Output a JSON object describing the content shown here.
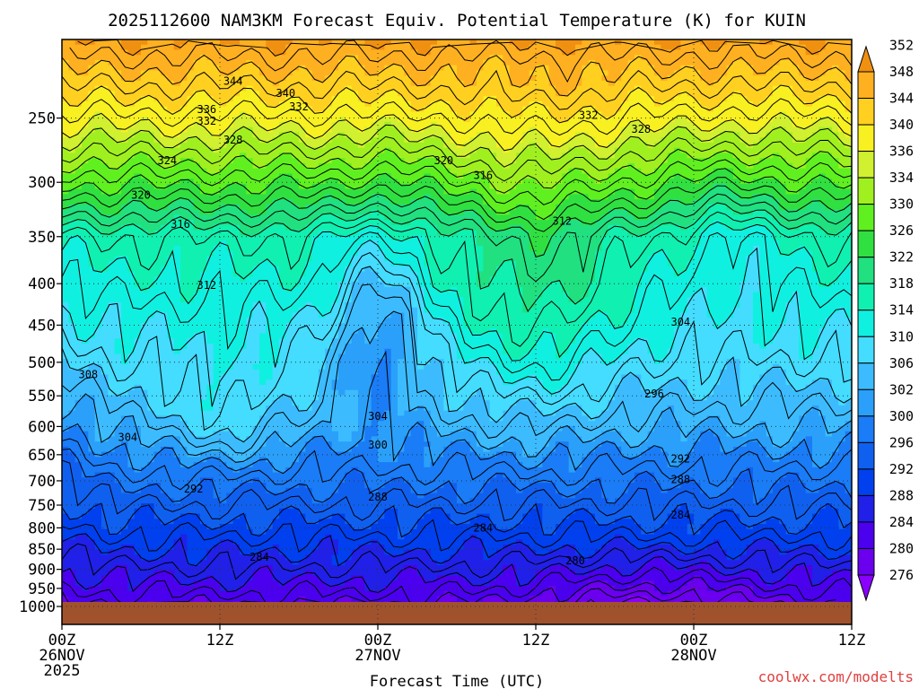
{
  "chart_data": {
    "type": "heatmap",
    "title": "2025112600 NAM3KM Forecast Equiv. Potential Temperature (K) for KUIN",
    "xlabel": "Forecast Time (UTC)",
    "ylabel": "",
    "x_ticks": [
      {
        "lines": [
          "00Z",
          "26NOV",
          "2025"
        ]
      },
      {
        "lines": [
          "12Z"
        ]
      },
      {
        "lines": [
          "00Z",
          "27NOV"
        ]
      },
      {
        "lines": [
          "12Z"
        ]
      },
      {
        "lines": [
          "00Z",
          "28NOV"
        ]
      },
      {
        "lines": [
          "12Z"
        ]
      }
    ],
    "x_range_hours": [
      0,
      60
    ],
    "y_ticks": [
      250,
      300,
      350,
      400,
      450,
      500,
      550,
      600,
      650,
      700,
      750,
      800,
      850,
      900,
      950,
      1000
    ],
    "y_range_hpa": [
      200,
      1000
    ],
    "y_scale": "log-pressure",
    "grid": "dotted",
    "colorbar": {
      "levels": [
        276,
        280,
        284,
        288,
        292,
        296,
        300,
        302,
        306,
        310,
        314,
        318,
        322,
        326,
        330,
        334,
        336,
        340,
        344,
        348,
        352
      ],
      "colors": [
        "#8a00ff",
        "#6a00ee",
        "#4b00ee",
        "#2020e8",
        "#0040ee",
        "#1060f0",
        "#1a7cf6",
        "#2aa0fa",
        "#3cbcff",
        "#44dcff",
        "#10f0e0",
        "#10f0b0",
        "#20e080",
        "#30e040",
        "#60f020",
        "#a0f020",
        "#d0f030",
        "#f8f020",
        "#ffd020",
        "#ffb020",
        "#f09010"
      ],
      "unit": "K"
    },
    "contour_labels": [
      {
        "h": 13.0,
        "p": 225,
        "v": "344"
      },
      {
        "h": 17.0,
        "p": 233,
        "v": "340"
      },
      {
        "h": 11.0,
        "p": 244,
        "v": "336"
      },
      {
        "h": 11.0,
        "p": 252,
        "v": "332"
      },
      {
        "h": 13.0,
        "p": 266,
        "v": "328"
      },
      {
        "h": 8.0,
        "p": 282,
        "v": "324"
      },
      {
        "h": 6.0,
        "p": 311,
        "v": "320"
      },
      {
        "h": 9.0,
        "p": 338,
        "v": "316"
      },
      {
        "h": 11.0,
        "p": 402,
        "v": "312"
      },
      {
        "h": 2.0,
        "p": 518,
        "v": "308"
      },
      {
        "h": 5.0,
        "p": 619,
        "v": "304"
      },
      {
        "h": 10.0,
        "p": 716,
        "v": "292"
      },
      {
        "h": 15.0,
        "p": 869,
        "v": "284"
      },
      {
        "h": 18.0,
        "p": 242,
        "v": "332"
      },
      {
        "h": 40.0,
        "p": 248,
        "v": "332"
      },
      {
        "h": 44.0,
        "p": 258,
        "v": "328"
      },
      {
        "h": 29.0,
        "p": 282,
        "v": "320"
      },
      {
        "h": 32.0,
        "p": 294,
        "v": "316"
      },
      {
        "h": 38.0,
        "p": 335,
        "v": "312"
      },
      {
        "h": 47.0,
        "p": 446,
        "v": "304"
      },
      {
        "h": 45.0,
        "p": 547,
        "v": "296"
      },
      {
        "h": 24.0,
        "p": 583,
        "v": "304"
      },
      {
        "h": 24.0,
        "p": 632,
        "v": "300"
      },
      {
        "h": 47.0,
        "p": 658,
        "v": "292"
      },
      {
        "h": 47.0,
        "p": 697,
        "v": "288"
      },
      {
        "h": 24.0,
        "p": 733,
        "v": "288"
      },
      {
        "h": 32.0,
        "p": 800,
        "v": "284"
      },
      {
        "h": 47.0,
        "p": 771,
        "v": "284"
      },
      {
        "h": 39.0,
        "p": 878,
        "v": "280"
      }
    ],
    "credit": "coolwx.com/modelts"
  }
}
